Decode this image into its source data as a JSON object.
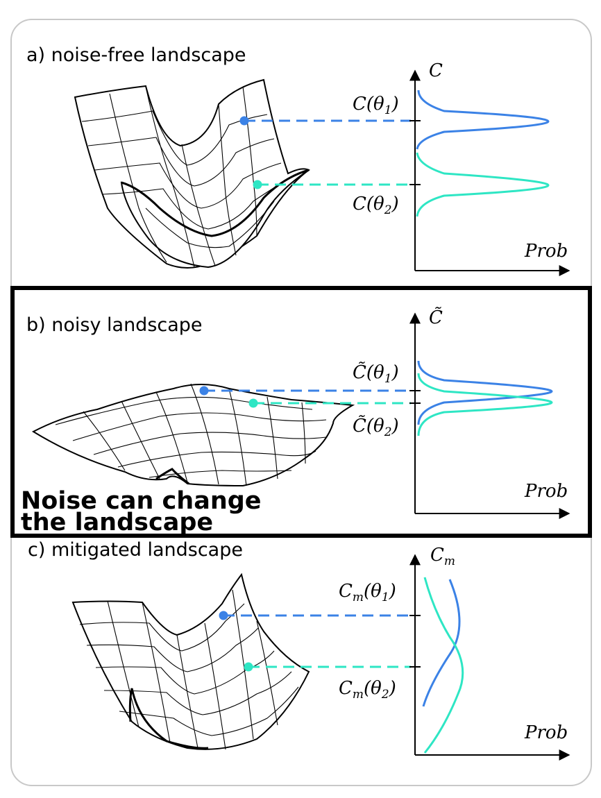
{
  "colors": {
    "blue": "#3b82e6",
    "teal": "#2ee6c4",
    "frame": "#c8c8c8",
    "highlight": "#000000"
  },
  "panels": [
    {
      "id": "a",
      "title": "a) noise-free landscape",
      "axis_y_label": "C",
      "axis_x_label": "Prob",
      "point1_label": "C(θ",
      "point1_sub": "1",
      "point2_label": "C(θ",
      "point2_sub": "2",
      "point1_close": ")",
      "point2_close": ")"
    },
    {
      "id": "b",
      "title": "b) noisy landscape",
      "axis_y_label": "C̃",
      "axis_x_label": "Prob",
      "point1_label": "C̃(θ",
      "point1_sub": "1",
      "point2_label": "C̃(θ",
      "point2_sub": "2",
      "point1_close": ")",
      "point2_close": ")"
    },
    {
      "id": "c",
      "title": "c) mitigated landscape",
      "axis_y_label": "C",
      "axis_y_sub": "m",
      "axis_x_label": "Prob",
      "point1_label": "C",
      "point1_msub": "m",
      "point1_theta": "(θ",
      "point1_sub": "1",
      "point2_label": "C",
      "point2_msub": "m",
      "point2_theta": "(θ",
      "point2_sub": "2",
      "point1_close": ")",
      "point2_close": ")"
    }
  ],
  "callout": {
    "line1": "Noise can change",
    "line2": "the landscape"
  }
}
